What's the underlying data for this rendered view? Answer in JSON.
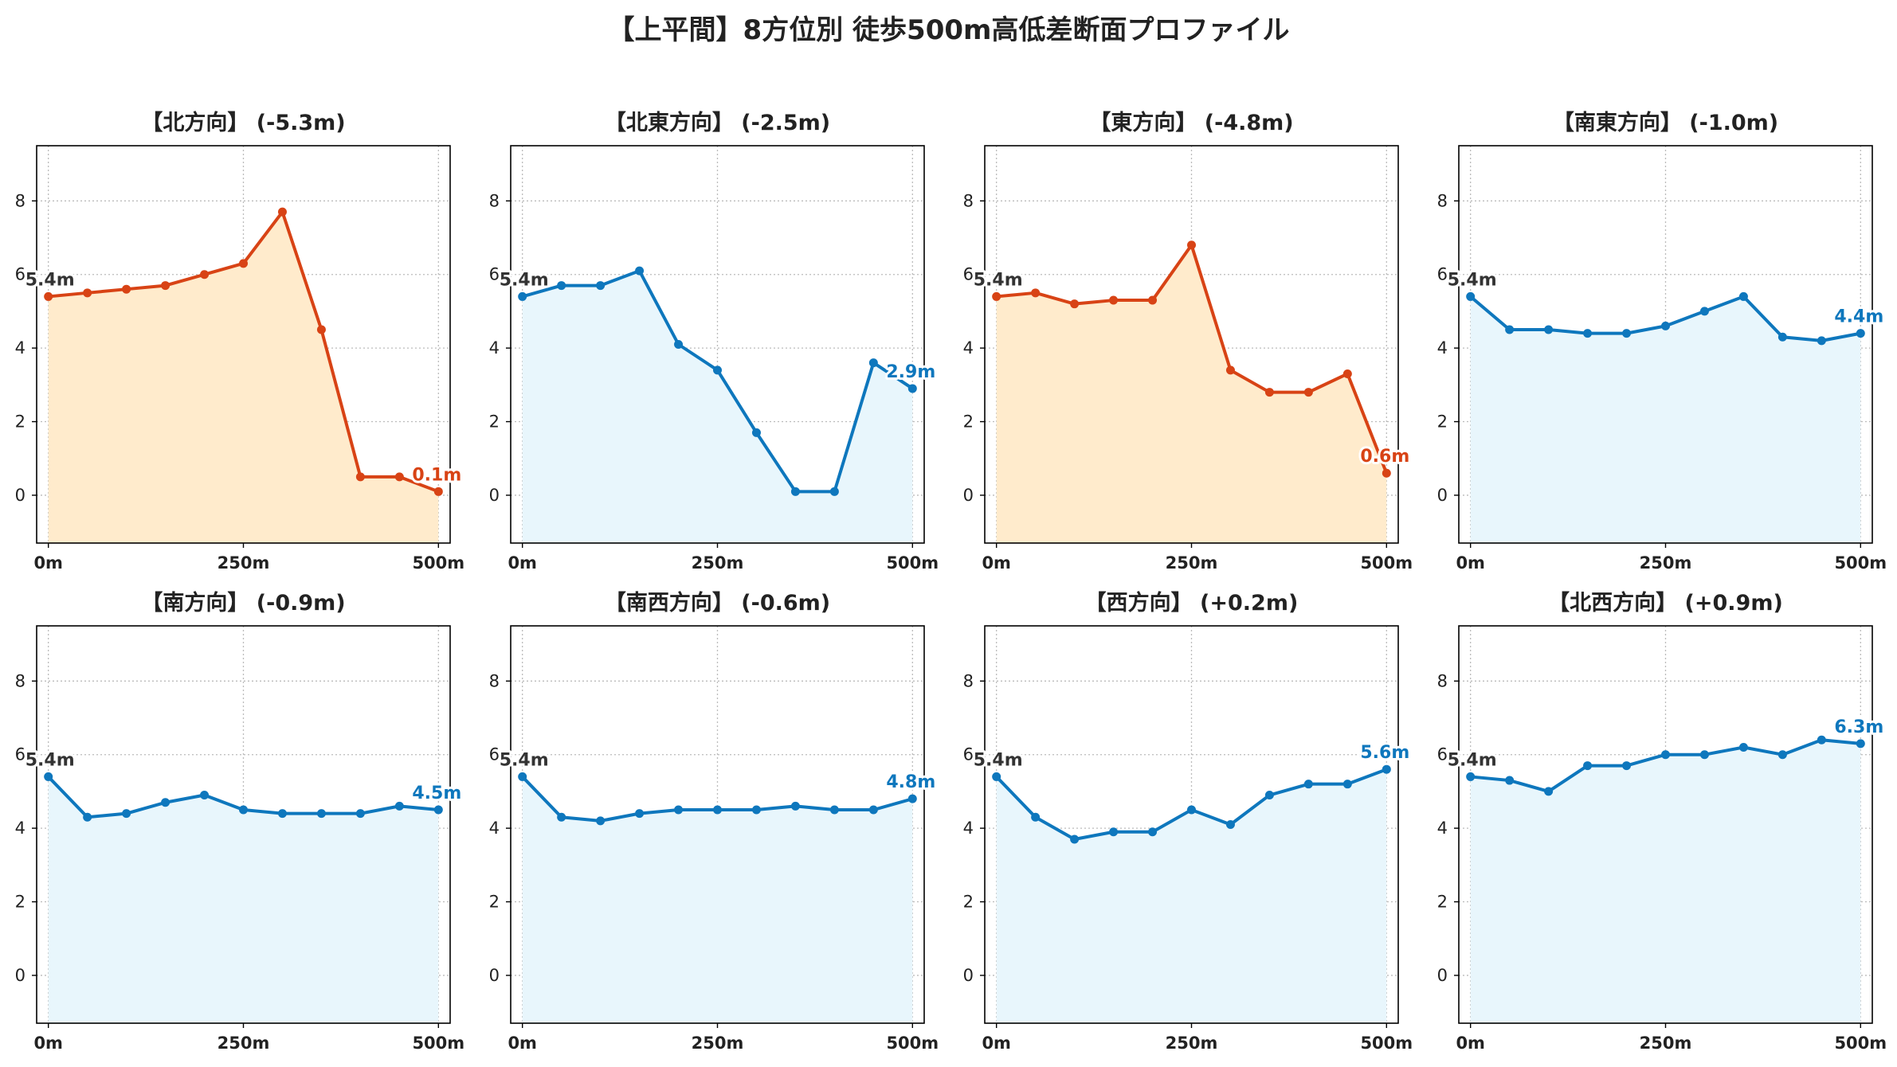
{
  "suptitle": "【上平間】8方位別 徒歩500m高低差断面プロファイル",
  "colors": {
    "down_line": "#D84315",
    "down_fill": "#FFEBCC",
    "up_line": "#0E77BD",
    "up_fill": "#E8F6FC",
    "start_label": "#333333",
    "grid": "#BBBBBB"
  },
  "chart_data": [
    {
      "type": "line",
      "title": "【北方向】 (-5.3m)",
      "style": "down",
      "x": [
        0,
        50,
        100,
        150,
        200,
        250,
        300,
        350,
        400,
        450,
        500
      ],
      "y": [
        5.4,
        5.5,
        5.6,
        5.7,
        6.0,
        6.3,
        7.7,
        4.5,
        0.5,
        0.5,
        0.1
      ],
      "start_label": "5.4m",
      "end_label": "0.1m",
      "xticks": [
        "0m",
        "250m",
        "500m"
      ],
      "yticks": [
        0,
        2,
        4,
        6,
        8
      ],
      "ylim": [
        -1.3,
        9.5
      ],
      "xlim": [
        -15,
        515
      ],
      "grid": true
    },
    {
      "type": "line",
      "title": "【北東方向】 (-2.5m)",
      "style": "up",
      "x": [
        0,
        50,
        100,
        150,
        200,
        250,
        300,
        350,
        400,
        450,
        500
      ],
      "y": [
        5.4,
        5.7,
        5.7,
        6.1,
        4.1,
        3.4,
        1.7,
        0.1,
        0.1,
        3.6,
        2.9
      ],
      "start_label": "5.4m",
      "end_label": "2.9m",
      "xticks": [
        "0m",
        "250m",
        "500m"
      ],
      "yticks": [
        0,
        2,
        4,
        6,
        8
      ],
      "ylim": [
        -1.3,
        9.5
      ],
      "xlim": [
        -15,
        515
      ],
      "grid": true
    },
    {
      "type": "line",
      "title": "【東方向】 (-4.8m)",
      "style": "down",
      "x": [
        0,
        50,
        100,
        150,
        200,
        250,
        300,
        350,
        400,
        450,
        500
      ],
      "y": [
        5.4,
        5.5,
        5.2,
        5.3,
        5.3,
        6.8,
        3.4,
        2.8,
        2.8,
        3.3,
        0.6
      ],
      "start_label": "5.4m",
      "end_label": "0.6m",
      "xticks": [
        "0m",
        "250m",
        "500m"
      ],
      "yticks": [
        0,
        2,
        4,
        6,
        8
      ],
      "ylim": [
        -1.3,
        9.5
      ],
      "xlim": [
        -15,
        515
      ],
      "grid": true
    },
    {
      "type": "line",
      "title": "【南東方向】 (-1.0m)",
      "style": "up",
      "x": [
        0,
        50,
        100,
        150,
        200,
        250,
        300,
        350,
        400,
        450,
        500
      ],
      "y": [
        5.4,
        4.5,
        4.5,
        4.4,
        4.4,
        4.6,
        5.0,
        5.4,
        4.3,
        4.2,
        4.4
      ],
      "start_label": "5.4m",
      "end_label": "4.4m",
      "xticks": [
        "0m",
        "250m",
        "500m"
      ],
      "yticks": [
        0,
        2,
        4,
        6,
        8
      ],
      "ylim": [
        -1.3,
        9.5
      ],
      "xlim": [
        -15,
        515
      ],
      "grid": true
    },
    {
      "type": "line",
      "title": "【南方向】 (-0.9m)",
      "style": "up",
      "x": [
        0,
        50,
        100,
        150,
        200,
        250,
        300,
        350,
        400,
        450,
        500
      ],
      "y": [
        5.4,
        4.3,
        4.4,
        4.7,
        4.9,
        4.5,
        4.4,
        4.4,
        4.4,
        4.6,
        4.5
      ],
      "start_label": "5.4m",
      "end_label": "4.5m",
      "xticks": [
        "0m",
        "250m",
        "500m"
      ],
      "yticks": [
        0,
        2,
        4,
        6,
        8
      ],
      "ylim": [
        -1.3,
        9.5
      ],
      "xlim": [
        -15,
        515
      ],
      "grid": true
    },
    {
      "type": "line",
      "title": "【南西方向】 (-0.6m)",
      "style": "up",
      "x": [
        0,
        50,
        100,
        150,
        200,
        250,
        300,
        350,
        400,
        450,
        500
      ],
      "y": [
        5.4,
        4.3,
        4.2,
        4.4,
        4.5,
        4.5,
        4.5,
        4.6,
        4.5,
        4.5,
        4.8
      ],
      "start_label": "5.4m",
      "end_label": "4.8m",
      "xticks": [
        "0m",
        "250m",
        "500m"
      ],
      "yticks": [
        0,
        2,
        4,
        6,
        8
      ],
      "ylim": [
        -1.3,
        9.5
      ],
      "xlim": [
        -15,
        515
      ],
      "grid": true
    },
    {
      "type": "line",
      "title": "【西方向】 (+0.2m)",
      "style": "up",
      "x": [
        0,
        50,
        100,
        150,
        200,
        250,
        300,
        350,
        400,
        450,
        500
      ],
      "y": [
        5.4,
        4.3,
        3.7,
        3.9,
        3.9,
        4.5,
        4.1,
        4.9,
        5.2,
        5.2,
        5.6
      ],
      "start_label": "5.4m",
      "end_label": "5.6m",
      "xticks": [
        "0m",
        "250m",
        "500m"
      ],
      "yticks": [
        0,
        2,
        4,
        6,
        8
      ],
      "ylim": [
        -1.3,
        9.5
      ],
      "xlim": [
        -15,
        515
      ],
      "grid": true
    },
    {
      "type": "line",
      "title": "【北西方向】 (+0.9m)",
      "style": "up",
      "x": [
        0,
        50,
        100,
        150,
        200,
        250,
        300,
        350,
        400,
        450,
        500
      ],
      "y": [
        5.4,
        5.3,
        5.0,
        5.7,
        5.7,
        6.0,
        6.0,
        6.2,
        6.0,
        6.4,
        6.3
      ],
      "start_label": "5.4m",
      "end_label": "6.3m",
      "xticks": [
        "0m",
        "250m",
        "500m"
      ],
      "yticks": [
        0,
        2,
        4,
        6,
        8
      ],
      "ylim": [
        -1.3,
        9.5
      ],
      "xlim": [
        -15,
        515
      ],
      "grid": true
    }
  ]
}
